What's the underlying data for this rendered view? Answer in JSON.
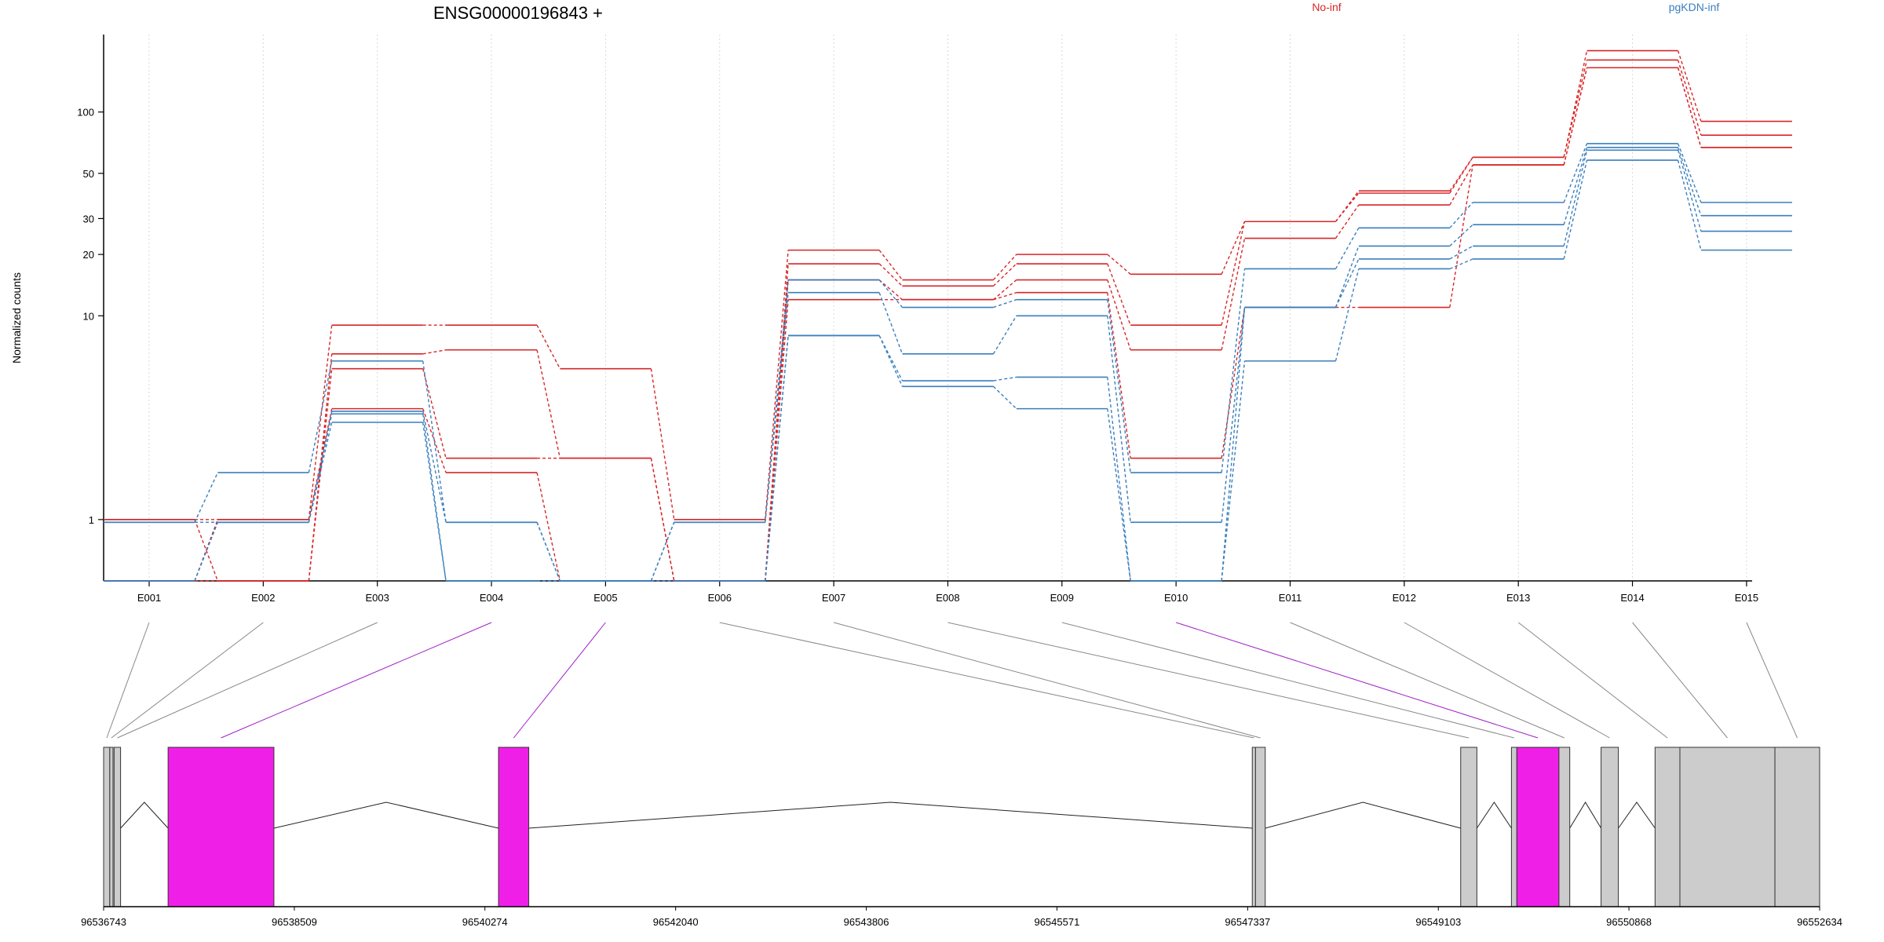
{
  "chart_data": [
    {
      "type": "line",
      "title": "ENSG00000196843 +",
      "ylabel": "Normalized counts",
      "xlabel": "",
      "yscale": "log",
      "ylim": [
        0.5,
        240
      ],
      "yticks": [
        1,
        10,
        20,
        30,
        50,
        100
      ],
      "ytick_labels": [
        "1",
        "10",
        "20",
        "30",
        "50",
        "100"
      ],
      "categories": [
        "E001",
        "E002",
        "E003",
        "E004",
        "E005",
        "E006",
        "E007",
        "E008",
        "E009",
        "E010",
        "E011",
        "E012",
        "E013",
        "E014",
        "E015"
      ],
      "grid": "vertical dotted",
      "legend": [
        {
          "name": "No-inf",
          "color": "#d62728",
          "position": "top-center-right"
        },
        {
          "name": "pgKDN-inf",
          "color": "#3a7fbd",
          "position": "top-right"
        }
      ],
      "series": [
        {
          "group": "No-inf",
          "color": "#d62728",
          "values": [
            1.0,
            1.0,
            9.0,
            9.0,
            5.5,
            1.0,
            21.0,
            15.0,
            20.0,
            16.0,
            29.0,
            41.0,
            60.0,
            200,
            90
          ]
        },
        {
          "group": "No-inf",
          "color": "#d62728",
          "values": [
            1.0,
            0.5,
            6.5,
            6.8,
            2.0,
            0.5,
            18.0,
            14.0,
            18.0,
            9.0,
            29.0,
            40.0,
            60.0,
            180,
            77
          ]
        },
        {
          "group": "No-inf",
          "color": "#d62728",
          "values": [
            0.5,
            0.5,
            5.5,
            2.0,
            2.0,
            0.5,
            15.0,
            12.0,
            15.0,
            6.8,
            24.0,
            35.0,
            55.0,
            165,
            67
          ]
        },
        {
          "group": "No-inf",
          "color": "#d62728",
          "values": [
            0.5,
            1.0,
            3.5,
            1.7,
            0.5,
            0.5,
            12.0,
            12.0,
            13.0,
            2.0,
            11.0,
            11.0,
            55.0,
            165,
            67
          ]
        },
        {
          "group": "pgKDN-inf",
          "color": "#3a7fbd",
          "values": [
            0.97,
            1.7,
            6.0,
            0.97,
            0.5,
            0.97,
            15.0,
            11.0,
            12.0,
            1.7,
            17.0,
            27.0,
            36.0,
            70,
            36
          ]
        },
        {
          "group": "pgKDN-inf",
          "color": "#3a7fbd",
          "values": [
            0.97,
            0.97,
            3.4,
            0.97,
            0.5,
            0.97,
            13.0,
            6.5,
            10.0,
            0.97,
            11.0,
            22.0,
            28.0,
            67,
            31
          ]
        },
        {
          "group": "pgKDN-inf",
          "color": "#3a7fbd",
          "values": [
            0.5,
            0.97,
            3.3,
            0.5,
            0.5,
            0.5,
            8.0,
            4.8,
            5.0,
            0.5,
            11.0,
            19.0,
            22.0,
            65,
            26
          ]
        },
        {
          "group": "pgKDN-inf",
          "color": "#3a7fbd",
          "values": [
            0.5,
            0.97,
            3.0,
            0.5,
            0.5,
            0.5,
            8.0,
            4.5,
            3.5,
            0.5,
            6.0,
            17.0,
            19.0,
            58,
            21
          ]
        }
      ]
    },
    {
      "type": "gene-model",
      "xlim": [
        96536743,
        96552634
      ],
      "xticks": [
        96536743,
        96538509,
        96540274,
        96542040,
        96543806,
        96545571,
        96547337,
        96549103,
        96550868,
        96552634
      ],
      "xtick_labels": [
        "96536743",
        "96538509",
        "96540274",
        "96542040",
        "96543806",
        "96545571",
        "96547337",
        "96549103",
        "96550868",
        "96552634"
      ],
      "colors": {
        "default": "#cccccc",
        "highlight": "#f01fe8",
        "outline": "#333333"
      },
      "exons": [
        {
          "id": "E001",
          "start": 96536743,
          "end": 96536800,
          "highlight": false
        },
        {
          "id": "E002",
          "start": 96536800,
          "end": 96536830,
          "highlight": false
        },
        {
          "id": "E003",
          "start": 96536840,
          "end": 96536900,
          "highlight": false
        },
        {
          "id": "E004",
          "start": 96537340,
          "end": 96538320,
          "highlight": true
        },
        {
          "id": "E005",
          "start": 96540400,
          "end": 96540680,
          "highlight": true
        },
        {
          "id": "E006",
          "start": 96547380,
          "end": 96547410,
          "highlight": false
        },
        {
          "id": "E007",
          "start": 96547410,
          "end": 96547500,
          "highlight": false
        },
        {
          "id": "E008",
          "start": 96549310,
          "end": 96549460,
          "highlight": false
        },
        {
          "id": "E009",
          "start": 96549780,
          "end": 96549830,
          "highlight": false
        },
        {
          "id": "E010",
          "start": 96549830,
          "end": 96550220,
          "highlight": true
        },
        {
          "id": "E011",
          "start": 96550220,
          "end": 96550320,
          "highlight": false
        },
        {
          "id": "E012",
          "start": 96550610,
          "end": 96550770,
          "highlight": false
        },
        {
          "id": "E013",
          "start": 96551110,
          "end": 96551340,
          "highlight": false
        },
        {
          "id": "E014",
          "start": 96551340,
          "end": 96552220,
          "highlight": false
        },
        {
          "id": "E015",
          "start": 96552220,
          "end": 96552634,
          "highlight": false
        }
      ],
      "introns": [
        [
          96536900,
          96537340
        ],
        [
          96538320,
          96540400
        ],
        [
          96540680,
          96547380
        ],
        [
          96547500,
          96549310
        ],
        [
          96549460,
          96549780
        ],
        [
          96550320,
          96550610
        ],
        [
          96550770,
          96551110
        ]
      ]
    }
  ]
}
